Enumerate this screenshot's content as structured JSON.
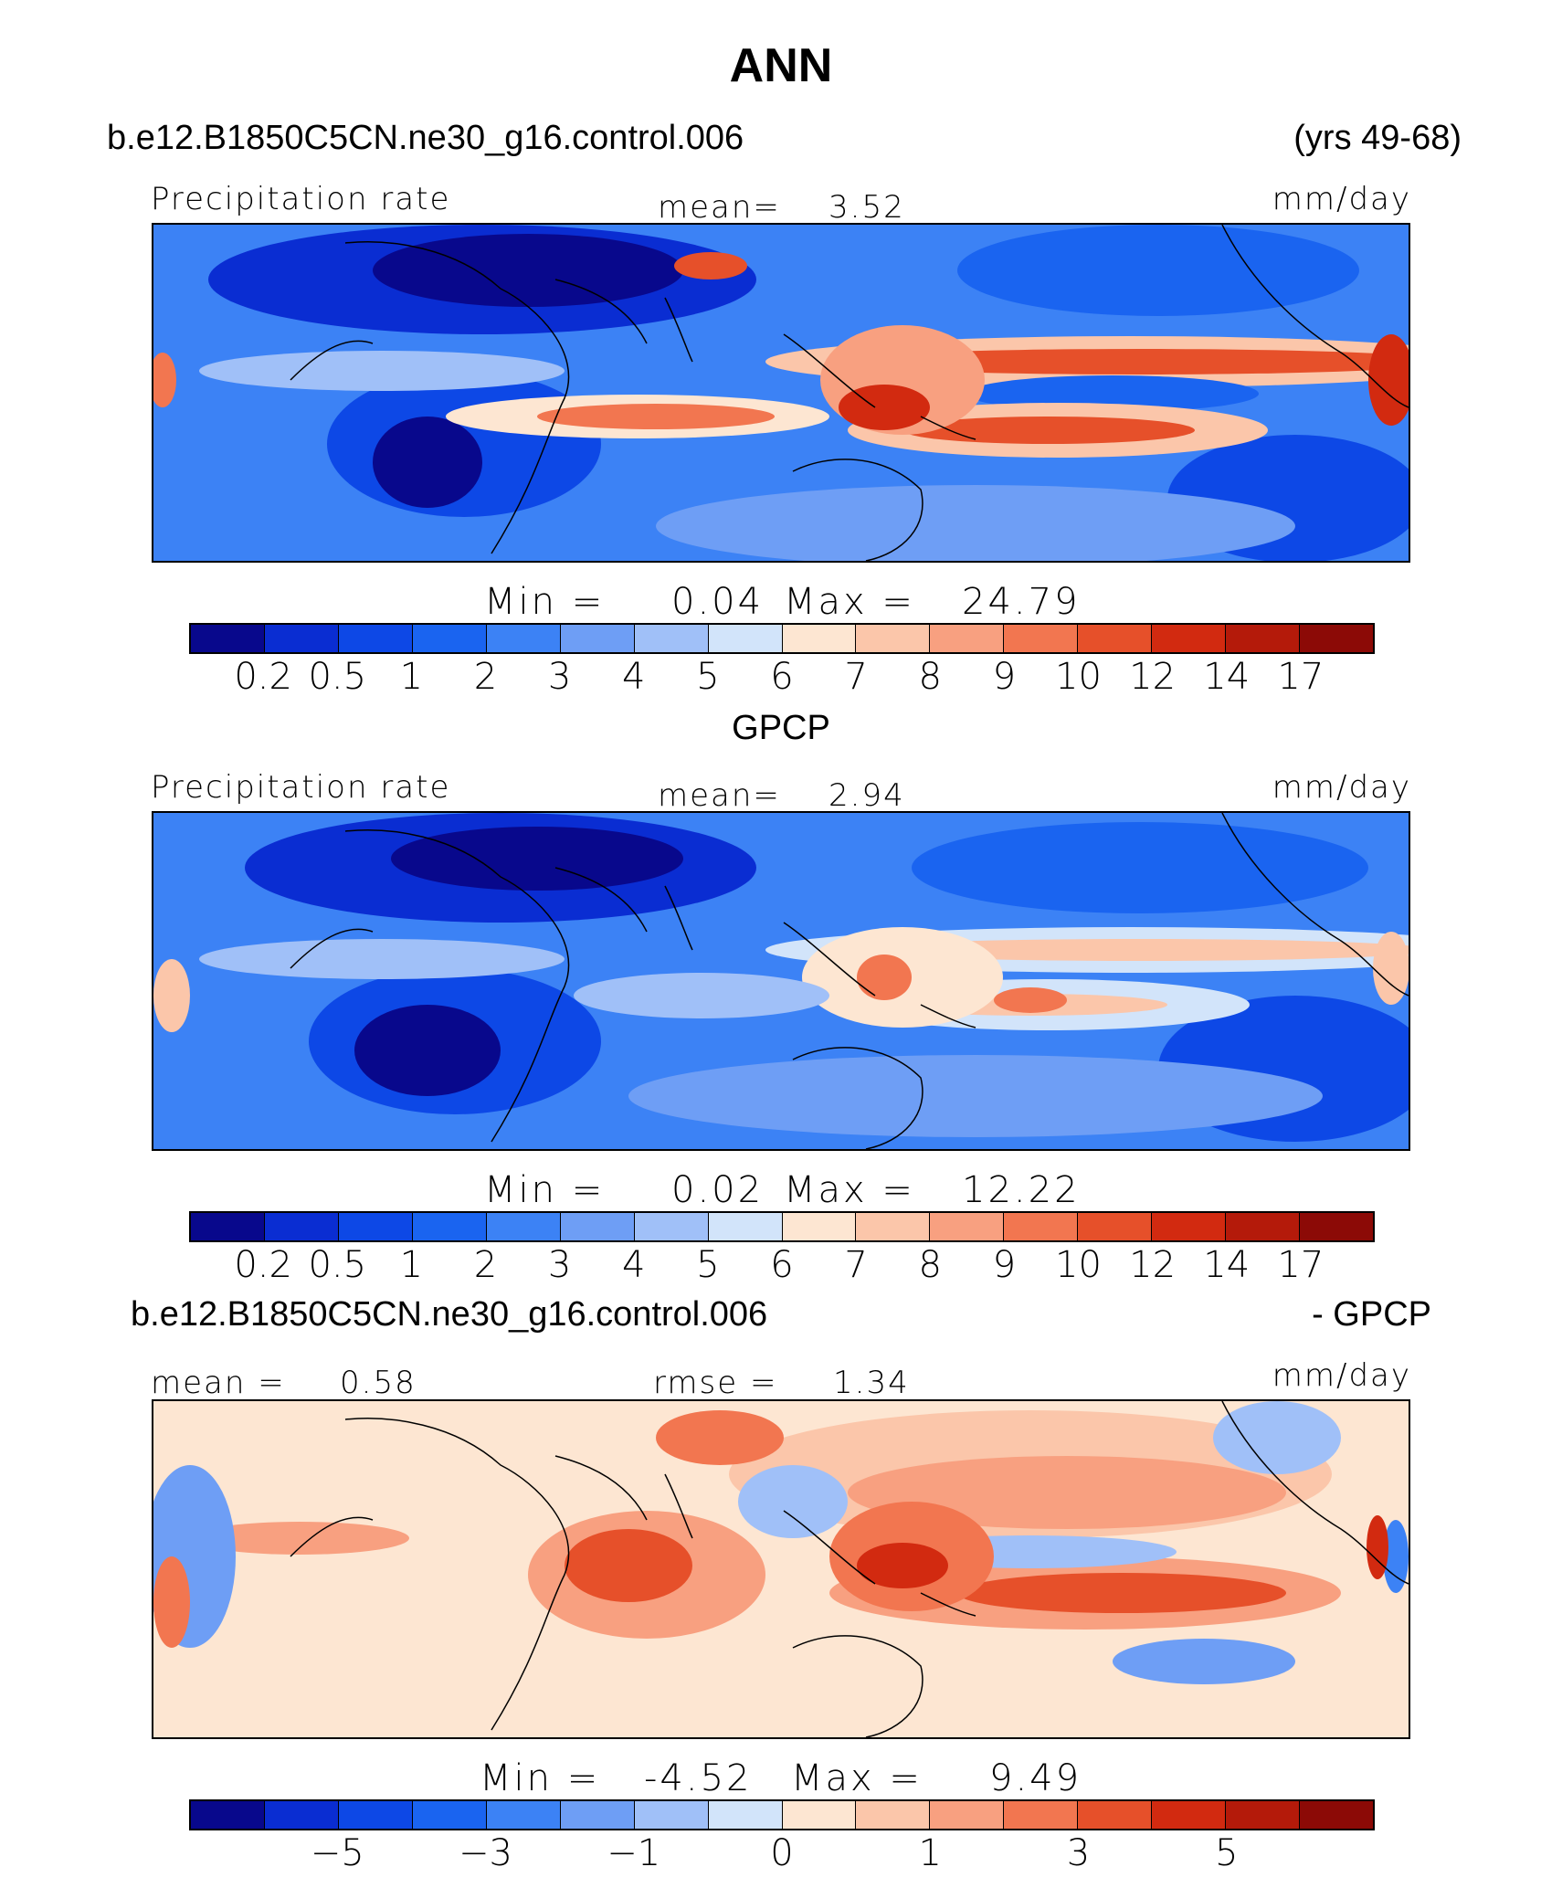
{
  "figure": {
    "title": "ANN",
    "case_name": "b.e12.B1850C5CN.ne30_g16.control.006",
    "years": "(yrs 49-68)",
    "obs_title": "GPCP",
    "diff_case": "b.e12.B1850C5CN.ne30_g16.control.006",
    "diff_suffix": "- GPCP"
  },
  "panels": [
    {
      "id": "model",
      "variable": "Precipitation rate",
      "stat_label": "mean=",
      "stat_value": "3.52",
      "units": "mm/day",
      "min_label": "Min  =",
      "min_value": "0.04",
      "max_label": "Max  =",
      "max_value": "24.79"
    },
    {
      "id": "obs",
      "variable": "Precipitation rate",
      "stat_label": "mean=",
      "stat_value": "2.94",
      "units": "mm/day",
      "min_label": "Min  =",
      "min_value": "0.02",
      "max_label": "Max  =",
      "max_value": "12.22"
    },
    {
      "id": "diff",
      "left_label": "mean  =",
      "left_value": "0.58",
      "stat_label": "rmse  =",
      "stat_value": "1.34",
      "units": "mm/day",
      "min_label": "Min  =",
      "min_value": "-4.52",
      "max_label": "Max  =",
      "max_value": "9.49"
    }
  ],
  "colorbars": {
    "precip_levels": [
      "0.2",
      "0.5",
      "1",
      "2",
      "3",
      "4",
      "5",
      "6",
      "7",
      "8",
      "9",
      "10",
      "12",
      "14",
      "17"
    ],
    "diff_levels": [
      "-5",
      "-3",
      "-1",
      "0",
      "1",
      "3",
      "5"
    ],
    "colors": [
      "#08088c",
      "#0a2dd2",
      "#0d48e6",
      "#1a64f0",
      "#3c82f5",
      "#6e9ef5",
      "#a0c0f8",
      "#d2e4fa",
      "#fde6d2",
      "#fbc6aa",
      "#f8a080",
      "#f27650",
      "#e6502a",
      "#d22a10",
      "#b41a0a",
      "#8c0a06"
    ]
  }
}
